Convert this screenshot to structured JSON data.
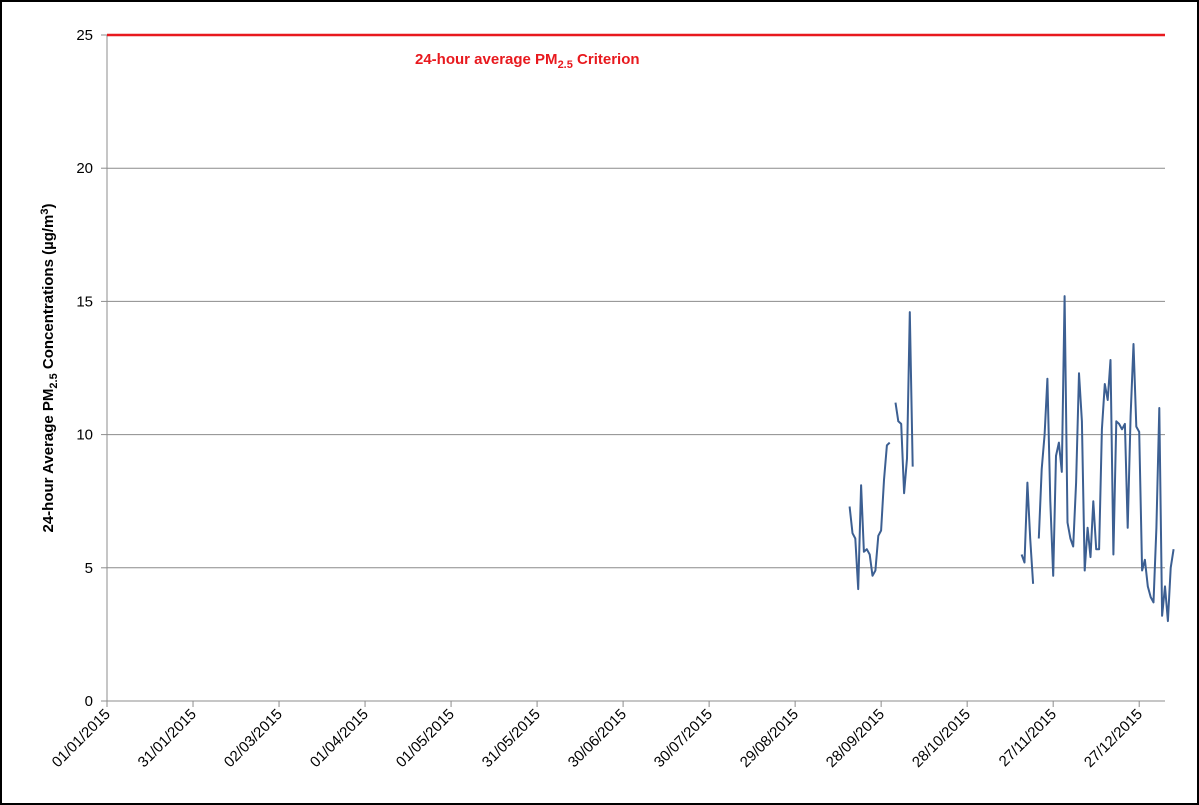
{
  "chart_data": {
    "type": "line",
    "ylabel": {
      "prefix": "24-hour Average PM",
      "sub": "2.5",
      "suffix": " Concentrations (µg/m",
      "sup": "3",
      "close": ")"
    },
    "ylim": [
      0,
      25
    ],
    "y_ticks": [
      0,
      5,
      10,
      15,
      20,
      25
    ],
    "y_tick_labels": [
      "0",
      "5",
      "10",
      "15",
      "20",
      "25"
    ],
    "x_tick_labels": [
      "01/01/2015",
      "31/01/2015",
      "02/03/2015",
      "01/04/2015",
      "01/05/2015",
      "31/05/2015",
      "30/06/2015",
      "30/07/2015",
      "29/08/2015",
      "28/09/2015",
      "28/10/2015",
      "27/11/2015",
      "27/12/2015"
    ],
    "xlim_days": [
      0,
      369
    ],
    "grid": "horizontal",
    "criterion": {
      "value": 25,
      "color": "#e8191e",
      "label_prefix": "24-hour average PM",
      "label_sub": "2.5",
      "label_suffix": " Criterion"
    },
    "series": [
      {
        "color": "#3c5f92",
        "segments": [
          [
            [
              "17/09/2015",
              7.3
            ],
            [
              "18/09/2015",
              6.3
            ],
            [
              "19/09/2015",
              6.1
            ],
            [
              "20/09/2015",
              4.2
            ],
            [
              "21/09/2015",
              8.1
            ],
            [
              "22/09/2015",
              5.6
            ],
            [
              "23/09/2015",
              5.7
            ],
            [
              "24/09/2015",
              5.5
            ],
            [
              "25/09/2015",
              4.7
            ],
            [
              "26/09/2015",
              4.9
            ],
            [
              "27/09/2015",
              6.2
            ],
            [
              "28/09/2015",
              6.4
            ],
            [
              "29/09/2015",
              8.3
            ],
            [
              "30/09/2015",
              9.6
            ],
            [
              "01/10/2015",
              9.7
            ]
          ],
          [
            [
              "03/10/2015",
              11.2
            ],
            [
              "04/10/2015",
              10.5
            ],
            [
              "05/10/2015",
              10.4
            ],
            [
              "06/10/2015",
              7.8
            ],
            [
              "07/10/2015",
              9.1
            ],
            [
              "08/10/2015",
              14.6
            ],
            [
              "09/10/2015",
              8.8
            ]
          ],
          [
            [
              "16/11/2015",
              5.5
            ],
            [
              "17/11/2015",
              5.2
            ],
            [
              "18/11/2015",
              8.2
            ],
            [
              "19/11/2015",
              6.1
            ],
            [
              "20/11/2015",
              4.4
            ]
          ],
          [
            [
              "22/11/2015",
              6.1
            ],
            [
              "23/11/2015",
              8.7
            ],
            [
              "24/11/2015",
              10.0
            ],
            [
              "25/11/2015",
              12.1
            ],
            [
              "26/11/2015",
              7.5
            ],
            [
              "27/11/2015",
              4.7
            ],
            [
              "28/11/2015",
              9.2
            ],
            [
              "29/11/2015",
              9.7
            ],
            [
              "30/11/2015",
              8.6
            ],
            [
              "01/12/2015",
              15.2
            ],
            [
              "02/12/2015",
              6.7
            ],
            [
              "03/12/2015",
              6.1
            ],
            [
              "04/12/2015",
              5.8
            ],
            [
              "05/12/2015",
              8.2
            ],
            [
              "06/12/2015",
              12.3
            ],
            [
              "07/12/2015",
              10.5
            ],
            [
              "08/12/2015",
              4.9
            ],
            [
              "09/12/2015",
              6.5
            ],
            [
              "10/12/2015",
              5.4
            ],
            [
              "11/12/2015",
              7.5
            ],
            [
              "12/12/2015",
              5.7
            ],
            [
              "13/12/2015",
              5.7
            ],
            [
              "14/12/2015",
              10.2
            ],
            [
              "15/12/2015",
              11.9
            ],
            [
              "16/12/2015",
              11.3
            ],
            [
              "17/12/2015",
              12.8
            ],
            [
              "18/12/2015",
              5.5
            ],
            [
              "19/12/2015",
              10.5
            ],
            [
              "20/12/2015",
              10.4
            ],
            [
              "21/12/2015",
              10.2
            ],
            [
              "22/12/2015",
              10.4
            ],
            [
              "23/12/2015",
              6.5
            ],
            [
              "24/12/2015",
              10.7
            ],
            [
              "25/12/2015",
              13.4
            ],
            [
              "26/12/2015",
              10.3
            ],
            [
              "27/12/2015",
              10.1
            ],
            [
              "28/12/2015",
              4.9
            ],
            [
              "29/12/2015",
              5.3
            ],
            [
              "30/12/2015",
              4.3
            ],
            [
              "31/12/2015",
              3.9
            ],
            [
              "01/01/2016",
              3.7
            ],
            [
              "02/01/2016",
              6.5
            ],
            [
              "03/01/2016",
              11.0
            ],
            [
              "04/01/2016",
              3.2
            ],
            [
              "05/01/2016",
              4.3
            ],
            [
              "06/01/2016",
              3.0
            ],
            [
              "07/01/2016",
              5.0
            ],
            [
              "08/01/2016",
              5.7
            ]
          ]
        ]
      }
    ]
  }
}
